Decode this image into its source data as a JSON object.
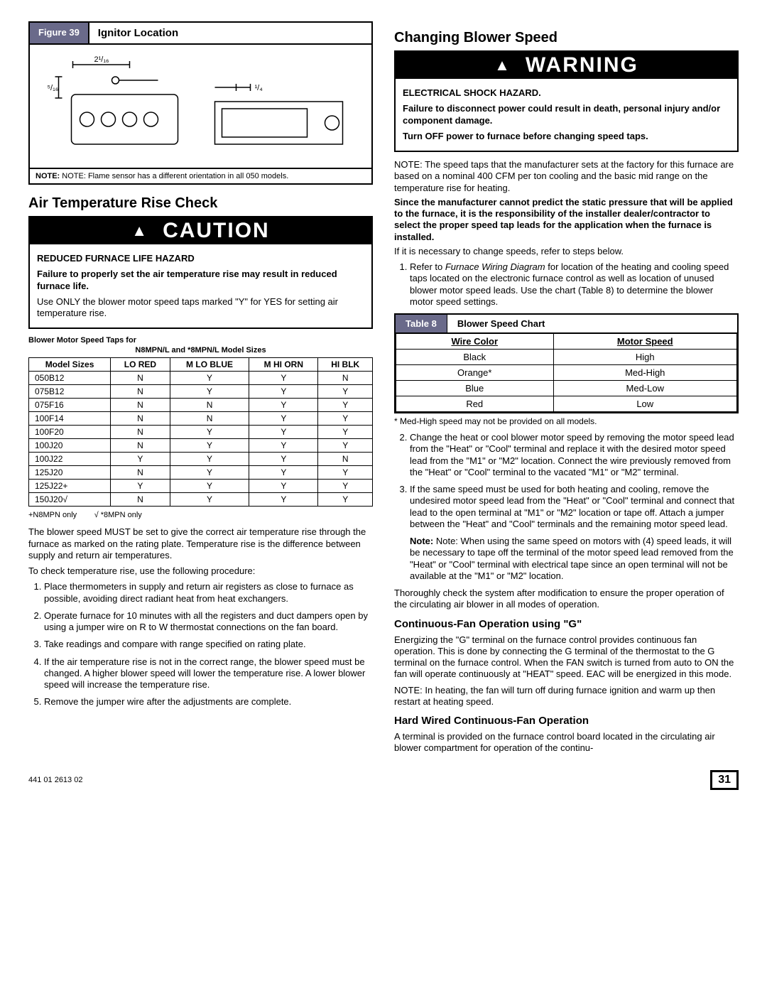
{
  "figure": {
    "label": "Figure 39",
    "title": "Ignitor Location",
    "dim1": "2¹/₁₆",
    "dim2": "⁵/₁₆",
    "dim3": "¹/₄",
    "note": "NOTE: Flame sensor has a different orientation in all 050 models."
  },
  "left": {
    "h2_air_temp": "Air Temperature Rise Check",
    "caution": {
      "header": "CAUTION",
      "sub": "REDUCED FURNACE LIFE HAZARD",
      "l1": "Failure to properly set the air temperature rise may result in reduced furnace life.",
      "l2": "Use ONLY the blower motor speed taps marked \"Y\" for YES for setting air temperature rise."
    },
    "taps_caption": "Blower Motor Speed Taps for",
    "taps_sub": "N8MPN/L and *8MPN/L Model Sizes",
    "taps_table": {
      "headers": [
        "Model Sizes",
        "LO RED",
        "M LO BLUE",
        "M HI ORN",
        "HI BLK"
      ],
      "rows": [
        [
          "050B12",
          "N",
          "Y",
          "Y",
          "N"
        ],
        [
          "075B12",
          "N",
          "Y",
          "Y",
          "Y"
        ],
        [
          "075F16",
          "N",
          "N",
          "Y",
          "Y"
        ],
        [
          "100F14",
          "N",
          "N",
          "Y",
          "Y"
        ],
        [
          "100F20",
          "N",
          "Y",
          "Y",
          "Y"
        ],
        [
          "100J20",
          "N",
          "Y",
          "Y",
          "Y"
        ],
        [
          "100J22",
          "Y",
          "Y",
          "Y",
          "N"
        ],
        [
          "125J20",
          "N",
          "Y",
          "Y",
          "Y"
        ],
        [
          "125J22+",
          "Y",
          "Y",
          "Y",
          "Y"
        ],
        [
          "150J20√",
          "N",
          "Y",
          "Y",
          "Y"
        ]
      ]
    },
    "taps_footnote": "+N8MPN only        √ *8MPN only",
    "para1": "The blower speed MUST be set to give the correct air temperature rise through the furnace as marked on the rating plate. Temperature rise is the difference between supply and return air temperatures.",
    "para2": "To check temperature rise, use the following procedure:",
    "proc": [
      "Place thermometers in supply and return air registers as close to furnace as possible, avoiding direct radiant heat from heat exchangers.",
      "Operate furnace for 10 minutes with all the registers and duct dampers open by using a jumper wire on R to W thermostat connections on the fan board.",
      "Take readings and compare with range specified on rating plate.",
      "If the air temperature rise is not in the correct range, the blower speed must be changed. A higher blower speed will lower the temperature rise. A lower blower speed will increase the temperature rise.",
      "Remove the jumper wire after the adjustments are complete."
    ]
  },
  "right": {
    "h2_blower": "Changing Blower Speed",
    "warn": {
      "header": "WARNING",
      "sub": "ELECTRICAL SHOCK HAZARD.",
      "l1": "Failure to disconnect power could result in death, personal injury and/or component damage.",
      "l2": "Turn OFF power to furnace before changing speed taps."
    },
    "note1": "NOTE: The speed taps that the manufacturer sets at the factory for this furnace are based on a nominal 400 CFM per ton cooling and the basic mid range on the temperature rise for heating.",
    "note2": "Since the manufacturer cannot predict the static pressure that will be applied to the furnace, it is the responsibility of the installer dealer/contractor to select the proper speed tap leads for the application when the furnace is installed.",
    "para_if": "If it is necessary to change speeds, refer to steps below.",
    "step1_a": "Refer to ",
    "step1_i": "Furnace Wiring Diagram",
    "step1_b": " for location of the heating and cooling speed taps located on the electronic furnace control as well as location of unused blower motor speed leads. Use the chart (Table 8) to determine the blower motor speed settings.",
    "table8": {
      "label": "Table 8",
      "title": "Blower Speed Chart",
      "h1": "Wire Color",
      "h2": "Motor Speed",
      "rows": [
        [
          "Black",
          "High"
        ],
        [
          "Orange*",
          "Med-High"
        ],
        [
          "Blue",
          "Med-Low"
        ],
        [
          "Red",
          "Low"
        ]
      ],
      "footnote": "* Med-High speed may not be provided on all models."
    },
    "step2": "Change the heat or cool blower motor speed by removing the motor speed lead from the \"Heat\" or \"Cool\" terminal and replace it with the desired motor speed lead from the \"M1\" or \"M2\" location. Connect the wire previously removed from the \"Heat\" or \"Cool\" terminal to the vacated \"M1\" or \"M2\" terminal.",
    "step3": "If the same speed must be used for both heating and cooling, remove the undesired motor speed lead from the \"Heat\" or \"Cool\" terminal and connect that lead to the open terminal at \"M1\" or \"M2\" location or tape off. Attach a jumper between the \"Heat\" and \"Cool\" terminals and the remaining motor speed lead.",
    "step3_note": "Note: When using the same speed on motors with (4) speed leads, it will be necessary to tape off the terminal of the motor speed lead removed from the \"Heat\" or \"Cool\" terminal with electrical tape since an open terminal will not be available at the \"M1\" or \"M2\" location.",
    "thorough": "Thoroughly check the system after modification to ensure the proper operation of the circulating air blower in all modes of operation.",
    "h3_contfan": "Continuous-Fan Operation using \"G\"",
    "contfan_p": "Energizing the \"G\" terminal on the furnace control provides continuous fan operation. This is done by connecting the G terminal of the thermostat to the G terminal on the furnace control. When the FAN switch is turned from auto to ON the fan will operate continuously at \"HEAT\" speed. EAC will be energized in this mode.",
    "contfan_note": "NOTE: In heating, the fan will turn off during furnace ignition and warm up then restart at heating speed.",
    "h3_hardwired": "Hard Wired Continuous-Fan Operation",
    "hardwired_p": "A terminal is provided on the furnace control board located in the circulating air blower compartment for operation of the continu-"
  },
  "footer": {
    "docnum": "441 01 2613 02",
    "page": "31"
  }
}
